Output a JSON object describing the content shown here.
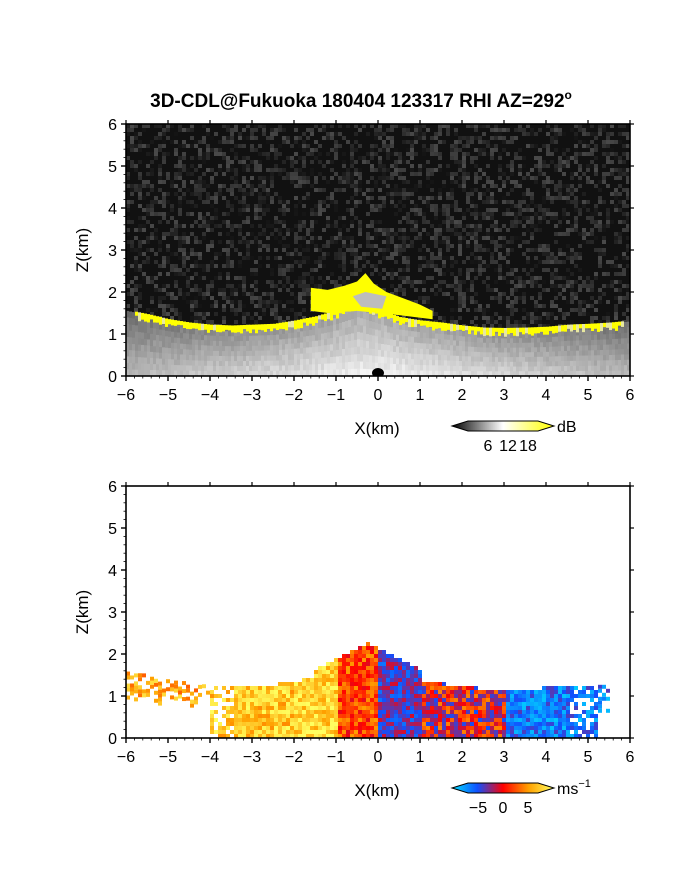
{
  "title": "3D-CDL@Fukuoka 180404 123317 RHI AZ=292",
  "title_degree": "o",
  "chart_data": [
    {
      "type": "heatmap",
      "variable": "backscatter intensity",
      "xlabel": "X(km)",
      "ylabel": "Z(km)",
      "xlim": [
        -6,
        6
      ],
      "ylim": [
        0,
        6
      ],
      "xticks": [
        "−6",
        "−5",
        "−4",
        "−3",
        "−2",
        "−1",
        "0",
        "1",
        "2",
        "3",
        "4",
        "5",
        "6"
      ],
      "yticks": [
        "0",
        "1",
        "2",
        "3",
        "4",
        "5",
        "6"
      ],
      "background_color": "#111111",
      "colorbar": {
        "unit": "dB",
        "tick_labels": [
          "6",
          "12",
          "18"
        ],
        "tick_values": [
          6,
          12,
          18
        ],
        "range": [
          0,
          21
        ],
        "colors": [
          "#000000",
          "#ffffff",
          "#ffff00"
        ]
      },
      "surface_profile": [
        [
          -6.0,
          1.55
        ],
        [
          -5.5,
          1.45
        ],
        [
          -5.0,
          1.33
        ],
        [
          -4.5,
          1.25
        ],
        [
          -4.0,
          1.2
        ],
        [
          -3.5,
          1.18
        ],
        [
          -3.0,
          1.2
        ],
        [
          -2.5,
          1.22
        ],
        [
          -2.0,
          1.3
        ],
        [
          -1.5,
          1.4
        ],
        [
          -1.0,
          1.55
        ],
        [
          -0.5,
          1.75
        ],
        [
          0.0,
          1.55
        ],
        [
          0.5,
          1.38
        ],
        [
          1.0,
          1.3
        ],
        [
          1.5,
          1.25
        ],
        [
          2.0,
          1.18
        ],
        [
          2.5,
          1.13
        ],
        [
          3.0,
          1.12
        ],
        [
          3.5,
          1.13
        ],
        [
          4.0,
          1.15
        ],
        [
          4.5,
          1.2
        ],
        [
          5.0,
          1.22
        ],
        [
          5.5,
          1.25
        ],
        [
          6.0,
          1.3
        ]
      ],
      "plume_top": [
        [
          -1.6,
          2.1
        ],
        [
          -1.2,
          2.05
        ],
        [
          -0.8,
          2.15
        ],
        [
          -0.5,
          2.25
        ],
        [
          -0.3,
          2.45
        ],
        [
          -0.1,
          2.2
        ],
        [
          0.2,
          2.0
        ],
        [
          0.6,
          1.85
        ],
        [
          1.0,
          1.7
        ],
        [
          1.3,
          1.55
        ]
      ]
    },
    {
      "type": "heatmap",
      "variable": "radial velocity",
      "xlabel": "X(km)",
      "ylabel": "Z(km)",
      "xlim": [
        -6,
        6
      ],
      "ylim": [
        0,
        6
      ],
      "xticks": [
        "−6",
        "−5",
        "−4",
        "−3",
        "−2",
        "−1",
        "0",
        "1",
        "2",
        "3",
        "4",
        "5",
        "6"
      ],
      "yticks": [
        "0",
        "1",
        "2",
        "3",
        "4",
        "5",
        "6"
      ],
      "background_color": "#ffffff",
      "colorbar": {
        "unit": "ms",
        "unit_exponent": "−1",
        "tick_labels": [
          "−5",
          "0",
          "5"
        ],
        "tick_values": [
          -5,
          0,
          5
        ],
        "range": [
          -7,
          7
        ],
        "colors": [
          "#00e0ff",
          "#1050ff",
          "#ff0000",
          "#ffa000",
          "#ffff60"
        ]
      },
      "velocity_regions": [
        {
          "x": [
            -6.0,
            -4.0
          ],
          "mean": 4.0
        },
        {
          "x": [
            -4.0,
            -2.0
          ],
          "mean": 5.0
        },
        {
          "x": [
            -2.0,
            -1.0
          ],
          "mean": 5.5
        },
        {
          "x": [
            -1.0,
            0.0
          ],
          "mean": 1.5
        },
        {
          "x": [
            0.0,
            1.0
          ],
          "mean": -2.5
        },
        {
          "x": [
            1.0,
            3.0
          ],
          "mean": -1.5
        },
        {
          "x": [
            3.0,
            5.5
          ],
          "mean": -4.5
        }
      ]
    }
  ]
}
